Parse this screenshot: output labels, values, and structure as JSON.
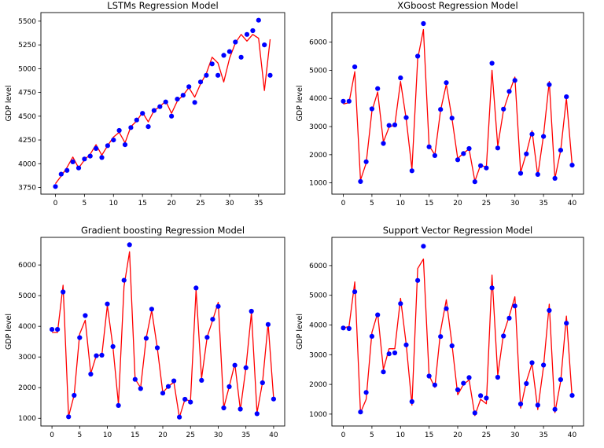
{
  "chart_data": [
    {
      "type": "scatter",
      "title": "LSTMs Regression Model",
      "xlabel": "",
      "ylabel": "GDP level",
      "xlim": [
        -2.5,
        39.5
      ],
      "ylim": [
        3680,
        5590
      ],
      "xticks": [
        0,
        5,
        10,
        15,
        20,
        25,
        30,
        35
      ],
      "yticks": [
        3750,
        4000,
        4250,
        4500,
        4750,
        5000,
        5250,
        5500
      ],
      "series": [
        {
          "kind": "points",
          "color": "#0000ff",
          "x": [
            0,
            1,
            2,
            3,
            4,
            5,
            6,
            7,
            8,
            9,
            10,
            11,
            12,
            13,
            14,
            15,
            16,
            17,
            18,
            19,
            20,
            21,
            22,
            23,
            24,
            25,
            26,
            27,
            28,
            29,
            30,
            31,
            32,
            33,
            34,
            35,
            36,
            37
          ],
          "y": [
            3760,
            3890,
            3930,
            4020,
            3955,
            4050,
            4080,
            4160,
            4065,
            4190,
            4250,
            4350,
            4200,
            4380,
            4460,
            4530,
            4390,
            4560,
            4600,
            4650,
            4500,
            4680,
            4720,
            4810,
            4645,
            4860,
            4930,
            5050,
            4930,
            5140,
            5180,
            5280,
            5120,
            5360,
            5400,
            5510,
            5250,
            4930
          ]
        },
        {
          "kind": "line",
          "color": "#ff0000",
          "x": [
            0,
            1,
            2,
            3,
            4,
            5,
            6,
            7,
            8,
            9,
            10,
            11,
            12,
            13,
            14,
            15,
            16,
            17,
            18,
            19,
            20,
            21,
            22,
            23,
            24,
            25,
            26,
            27,
            28,
            29,
            30,
            31,
            32,
            33,
            34,
            35,
            36,
            37
          ],
          "y": [
            3790,
            3870,
            3960,
            4070,
            3955,
            4040,
            4100,
            4200,
            4090,
            4190,
            4280,
            4330,
            4220,
            4390,
            4450,
            4540,
            4440,
            4560,
            4600,
            4660,
            4530,
            4660,
            4720,
            4800,
            4700,
            4840,
            4950,
            5120,
            5060,
            4860,
            5110,
            5270,
            5360,
            5290,
            5360,
            5320,
            4770,
            5310
          ]
        }
      ]
    },
    {
      "type": "scatter",
      "title": "XGboost Regression Model",
      "xlabel": "",
      "ylabel": "GDP level",
      "xlim": [
        -2,
        42
      ],
      "ylim": [
        600,
        7050
      ],
      "xticks": [
        0,
        5,
        10,
        15,
        20,
        25,
        30,
        35,
        40
      ],
      "yticks": [
        1000,
        2000,
        3000,
        4000,
        5000,
        6000
      ],
      "series": [
        {
          "kind": "points",
          "color": "#0000ff",
          "x": [
            0,
            1,
            2,
            3,
            4,
            5,
            6,
            7,
            8,
            9,
            10,
            11,
            12,
            13,
            14,
            15,
            16,
            17,
            18,
            19,
            20,
            21,
            22,
            23,
            24,
            25,
            26,
            27,
            28,
            29,
            30,
            31,
            32,
            33,
            34,
            35,
            36,
            37,
            38,
            39,
            40
          ],
          "y": [
            3900,
            3900,
            5120,
            1050,
            1750,
            3630,
            4350,
            2400,
            3040,
            3060,
            4730,
            3320,
            1430,
            5500,
            6660,
            2280,
            1970,
            3610,
            4560,
            3300,
            1820,
            2040,
            2220,
            1040,
            1610,
            1530,
            5250,
            2240,
            3620,
            4250,
            4640,
            1340,
            2030,
            2730,
            1300,
            2650,
            4490,
            1160,
            2160,
            4060,
            1630
          ]
        },
        {
          "kind": "line",
          "color": "#ff0000",
          "x": [
            0,
            1,
            2,
            3,
            4,
            5,
            6,
            7,
            8,
            9,
            10,
            11,
            12,
            13,
            14,
            15,
            16,
            17,
            18,
            19,
            20,
            21,
            22,
            23,
            24,
            25,
            26,
            27,
            28,
            29,
            30,
            31,
            32,
            33,
            34,
            35,
            36,
            37,
            38,
            39,
            40
          ],
          "y": [
            3800,
            3850,
            4950,
            1100,
            1700,
            3550,
            4230,
            2450,
            2980,
            3060,
            4600,
            3270,
            1480,
            5400,
            6450,
            2320,
            2000,
            3580,
            4500,
            3290,
            1860,
            2060,
            2200,
            1060,
            1640,
            1550,
            5000,
            2300,
            3580,
            4200,
            4760,
            1370,
            2060,
            2850,
            1260,
            2690,
            4600,
            1150,
            2150,
            4010,
            1640
          ]
        }
      ]
    },
    {
      "type": "scatter",
      "title": "Gradient boosting Regression Model",
      "xlabel": "",
      "ylabel": "GDP level",
      "xlim": [
        -2,
        42
      ],
      "ylim": [
        750,
        6900
      ],
      "xticks": [
        0,
        5,
        10,
        15,
        20,
        25,
        30,
        35,
        40
      ],
      "yticks": [
        1000,
        2000,
        3000,
        4000,
        5000,
        6000
      ],
      "series": [
        {
          "kind": "points",
          "color": "#0000ff",
          "x": [
            0,
            1,
            2,
            3,
            4,
            5,
            6,
            7,
            8,
            9,
            10,
            11,
            12,
            13,
            14,
            15,
            16,
            17,
            18,
            19,
            20,
            21,
            22,
            23,
            24,
            25,
            26,
            27,
            28,
            29,
            30,
            31,
            32,
            33,
            34,
            35,
            36,
            37,
            38,
            39,
            40
          ],
          "y": [
            3900,
            3900,
            5120,
            1050,
            1750,
            3630,
            4350,
            2440,
            3040,
            3060,
            4730,
            3340,
            1420,
            5500,
            6660,
            2270,
            1970,
            3610,
            4560,
            3300,
            1820,
            2040,
            2220,
            1040,
            1620,
            1530,
            5250,
            2240,
            3640,
            4230,
            4650,
            1340,
            2030,
            2730,
            1300,
            2650,
            4490,
            1150,
            2160,
            4060,
            1630
          ]
        },
        {
          "kind": "line",
          "color": "#ff0000",
          "x": [
            0,
            1,
            2,
            3,
            4,
            5,
            6,
            7,
            8,
            9,
            10,
            11,
            12,
            13,
            14,
            15,
            16,
            17,
            18,
            19,
            20,
            21,
            22,
            23,
            24,
            25,
            26,
            27,
            28,
            29,
            30,
            31,
            32,
            33,
            34,
            35,
            36,
            37,
            38,
            39,
            40
          ],
          "y": [
            3800,
            3800,
            5340,
            1060,
            1760,
            3750,
            4200,
            2460,
            3050,
            3060,
            4680,
            3330,
            1460,
            5300,
            6430,
            2280,
            2000,
            3620,
            4520,
            3300,
            1840,
            2040,
            2180,
            1030,
            1620,
            1560,
            5200,
            2300,
            3650,
            4200,
            4780,
            1350,
            2040,
            2780,
            1280,
            2650,
            4450,
            1180,
            2170,
            4100,
            1650
          ]
        }
      ]
    },
    {
      "type": "scatter",
      "title": "Support Vector Regression Model",
      "xlabel": "",
      "ylabel": "GDP level",
      "xlim": [
        -2,
        42
      ],
      "ylim": [
        600,
        6950
      ],
      "xticks": [
        0,
        5,
        10,
        15,
        20,
        25,
        30,
        35,
        40
      ],
      "yticks": [
        1000,
        2000,
        3000,
        4000,
        5000,
        6000
      ],
      "series": [
        {
          "kind": "points",
          "color": "#0000ff",
          "x": [
            0,
            1,
            2,
            3,
            4,
            5,
            6,
            7,
            8,
            9,
            10,
            11,
            12,
            13,
            14,
            15,
            16,
            17,
            18,
            19,
            20,
            21,
            22,
            23,
            24,
            25,
            26,
            27,
            28,
            29,
            30,
            31,
            32,
            33,
            34,
            35,
            36,
            37,
            38,
            39,
            40
          ],
          "y": [
            3900,
            3880,
            5120,
            1070,
            1730,
            3620,
            4340,
            2420,
            3030,
            3060,
            4720,
            3330,
            1420,
            5500,
            6650,
            2280,
            1980,
            3610,
            4550,
            3300,
            1820,
            2040,
            2230,
            1040,
            1620,
            1540,
            5250,
            2240,
            3630,
            4230,
            4640,
            1340,
            2030,
            2730,
            1300,
            2650,
            4490,
            1160,
            2160,
            4060,
            1630
          ]
        },
        {
          "kind": "line",
          "color": "#ff0000",
          "x": [
            0,
            1,
            2,
            3,
            4,
            5,
            6,
            7,
            8,
            9,
            10,
            11,
            12,
            13,
            14,
            15,
            16,
            17,
            18,
            19,
            20,
            21,
            22,
            23,
            24,
            25,
            26,
            27,
            28,
            29,
            30,
            31,
            32,
            33,
            34,
            35,
            36,
            37,
            38,
            39,
            40
          ],
          "y": [
            3900,
            3950,
            5450,
            1050,
            1500,
            3750,
            4400,
            2500,
            3200,
            3200,
            4900,
            3350,
            1300,
            5900,
            6220,
            2300,
            1900,
            3800,
            4850,
            3350,
            1650,
            2000,
            2150,
            950,
            1500,
            1350,
            5680,
            2300,
            3700,
            4300,
            4950,
            1200,
            2100,
            2700,
            1150,
            2600,
            4700,
            1050,
            2100,
            4300,
            1550
          ]
        }
      ]
    }
  ]
}
